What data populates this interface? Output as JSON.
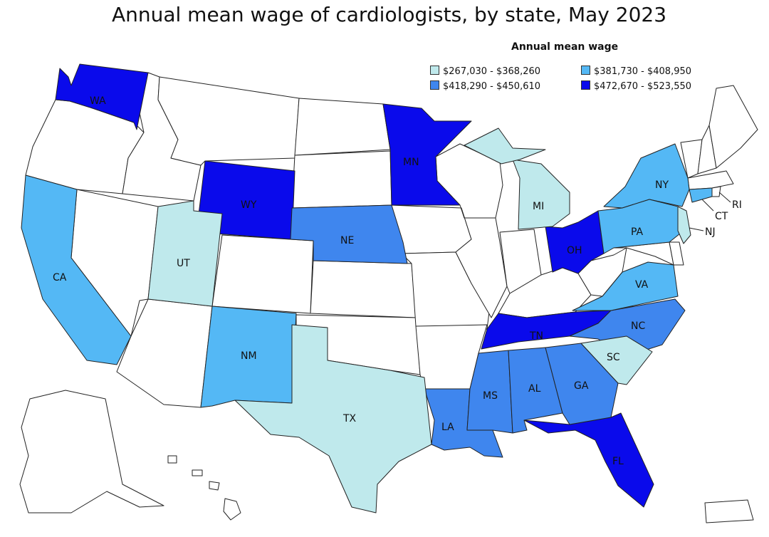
{
  "title": "Annual mean wage of cardiologists, by state, May 2023",
  "legend": {
    "title": "Annual mean wage",
    "items": [
      {
        "label": "$267,030 - $368,260",
        "color": "#bfe9ec"
      },
      {
        "label": "$381,730 - $408,950",
        "color": "#54b8f5"
      },
      {
        "label": "$418,290 - $450,610",
        "color": "#3f86ee"
      },
      {
        "label": "$472,670 - $523,550",
        "color": "#0a0aeb"
      }
    ]
  },
  "colors": {
    "no_data": "#ffffff",
    "stroke": "#222222"
  },
  "states": [
    {
      "abbr": "WA",
      "tier": 3
    },
    {
      "abbr": "MN",
      "tier": 3
    },
    {
      "abbr": "WY",
      "tier": 3
    },
    {
      "abbr": "OH",
      "tier": 3
    },
    {
      "abbr": "TN",
      "tier": 3
    },
    {
      "abbr": "FL",
      "tier": 3
    },
    {
      "abbr": "NE",
      "tier": 2
    },
    {
      "abbr": "LA",
      "tier": 2
    },
    {
      "abbr": "MS",
      "tier": 2
    },
    {
      "abbr": "AL",
      "tier": 2
    },
    {
      "abbr": "GA",
      "tier": 2
    },
    {
      "abbr": "NC",
      "tier": 2
    },
    {
      "abbr": "CA",
      "tier": 1
    },
    {
      "abbr": "NM",
      "tier": 1
    },
    {
      "abbr": "NY",
      "tier": 1
    },
    {
      "abbr": "PA",
      "tier": 1
    },
    {
      "abbr": "VA",
      "tier": 1
    },
    {
      "abbr": "CT",
      "tier": 1
    },
    {
      "abbr": "UT",
      "tier": 0
    },
    {
      "abbr": "TX",
      "tier": 0
    },
    {
      "abbr": "MI",
      "tier": 0
    },
    {
      "abbr": "SC",
      "tier": 0
    },
    {
      "abbr": "NJ",
      "tier": 0
    },
    {
      "abbr": "RI",
      "tier": null
    }
  ]
}
